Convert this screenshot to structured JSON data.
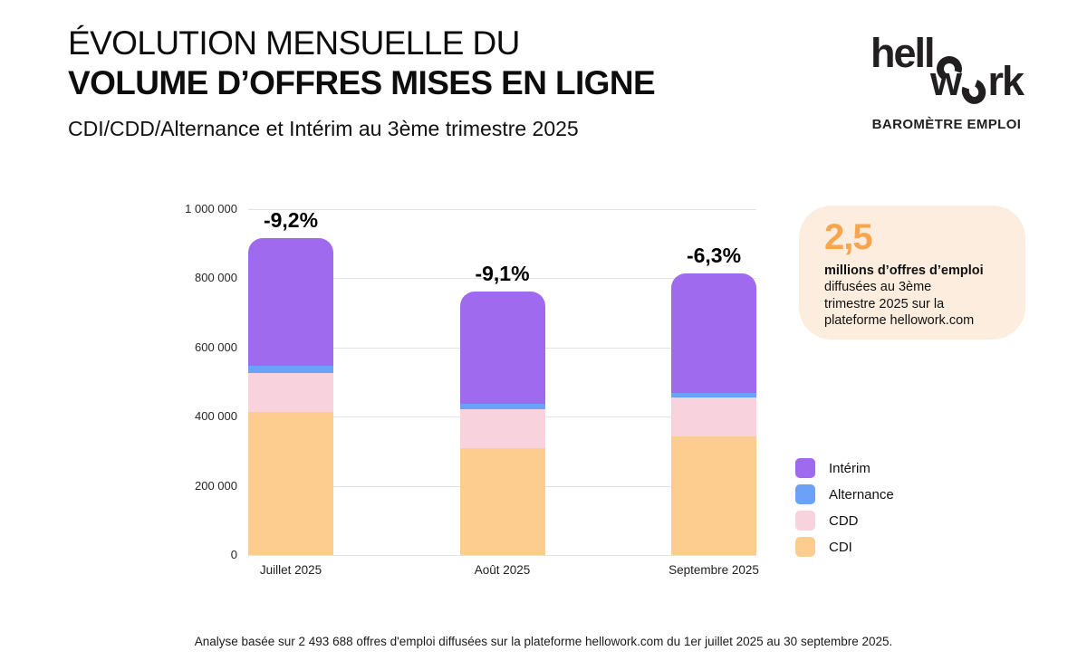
{
  "header": {
    "title_line1": "ÉVOLUTION MENSUELLE DU",
    "title_line2": "VOLUME D’OFFRES MISES EN LIGNE",
    "subtitle": "CDI/CDD/Alternance et Intérim au 3ème trimestre 2025"
  },
  "logo": {
    "line1_text": "hell",
    "line2_prefix": "w",
    "line2_suffix": "rk",
    "tagline": "BAROMÈTRE EMPLOI",
    "color": "#221F20"
  },
  "highlight_card": {
    "value": "2,5",
    "bold_text": "millions d’offres d’emploi",
    "text": "diffusées au 3ème trimestre 2025 sur la plateforme hellowork.com",
    "value_color": "#F7A64F",
    "bg_color": "#FCEDDE"
  },
  "chart_data": {
    "type": "bar",
    "stacked": true,
    "title": "Évolution mensuelle du volume d’offres mises en ligne",
    "xlabel": "",
    "ylabel": "",
    "categories": [
      "Juillet 2025",
      "Août 2025",
      "Septembre 2025"
    ],
    "series": [
      {
        "name": "CDI",
        "color": "#FDCD90",
        "values": [
          413000,
          310000,
          344000
        ]
      },
      {
        "name": "CDD",
        "color": "#F8D3DE",
        "values": [
          113000,
          112000,
          111000
        ]
      },
      {
        "name": "Alternance",
        "color": "#6BA1F7",
        "values": [
          22000,
          15000,
          13000
        ]
      },
      {
        "name": "Intérim",
        "color": "#A06AEF",
        "values": [
          368000,
          325000,
          345000
        ]
      }
    ],
    "totals": [
      916000,
      762000,
      813000
    ],
    "bar_labels": [
      "-9,2%",
      "-9,1%",
      "-6,3%"
    ],
    "ylim": [
      0,
      1000000
    ],
    "yticks": [
      0,
      200000,
      400000,
      600000,
      800000,
      1000000
    ],
    "ytick_labels": [
      "0",
      "200 000",
      "400 000",
      "600 000",
      "800 000",
      "1 000 000"
    ],
    "grid": true,
    "gridline_color": "#E3E3E3",
    "legend_position": "right",
    "legend_order": [
      "Intérim",
      "Alternance",
      "CDD",
      "CDI"
    ]
  },
  "footer": {
    "note": "Analyse basée sur 2 493 688 offres d'emploi diffusées sur la plateforme hellowork.com du 1er juillet 2025 au 30 septembre 2025."
  }
}
